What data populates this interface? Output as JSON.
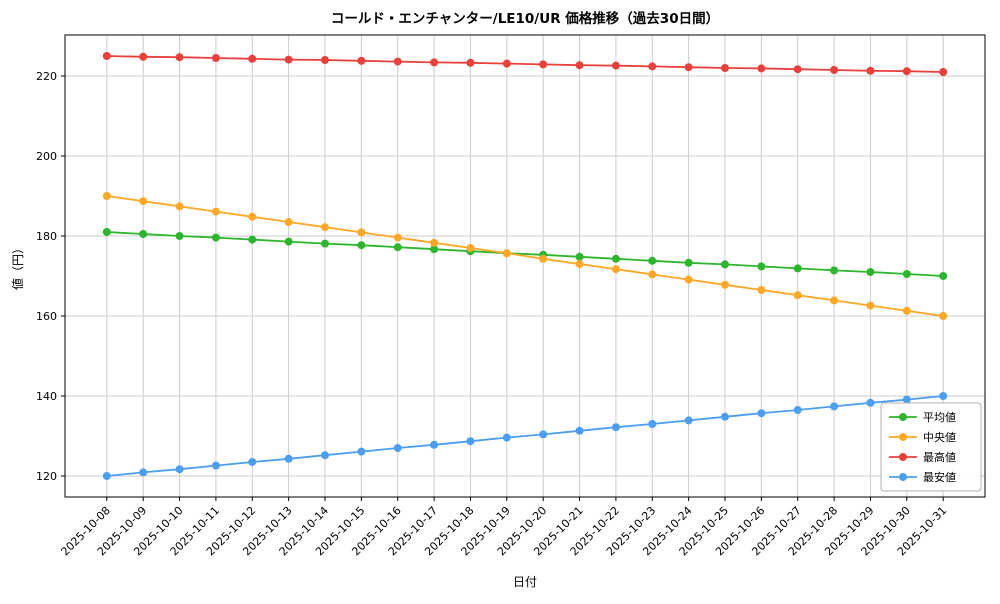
{
  "chart_data": {
    "type": "line",
    "title": "コールド・エンチャンター/LE10/UR 価格推移（過去30日間）",
    "xlabel": "日付",
    "ylabel": "値（円）",
    "grid": true,
    "legend_position": "lower-right",
    "ylim": [
      114.75,
      230.25
    ],
    "yticks": [
      120,
      140,
      160,
      180,
      200,
      220
    ],
    "x": [
      "2025-10-08",
      "2025-10-09",
      "2025-10-10",
      "2025-10-11",
      "2025-10-12",
      "2025-10-13",
      "2025-10-14",
      "2025-10-15",
      "2025-10-16",
      "2025-10-17",
      "2025-10-18",
      "2025-10-19",
      "2025-10-20",
      "2025-10-21",
      "2025-10-22",
      "2025-10-23",
      "2025-10-24",
      "2025-10-25",
      "2025-10-26",
      "2025-10-27",
      "2025-10-28",
      "2025-10-29",
      "2025-10-30",
      "2025-10-31"
    ],
    "series": [
      {
        "name": "平均値",
        "color": "#2db52d",
        "values": [
          181.0,
          180.5,
          180.0,
          179.6,
          179.1,
          178.6,
          178.1,
          177.7,
          177.2,
          176.7,
          176.2,
          175.7,
          175.3,
          174.8,
          174.3,
          173.8,
          173.3,
          172.9,
          172.4,
          171.9,
          171.4,
          171.0,
          170.5,
          170.0
        ]
      },
      {
        "name": "中央値",
        "color": "#ffa726",
        "values": [
          190.0,
          188.7,
          187.4,
          186.1,
          184.8,
          183.5,
          182.2,
          180.9,
          179.6,
          178.3,
          177.0,
          175.7,
          174.3,
          173.0,
          171.7,
          170.4,
          169.1,
          167.8,
          166.5,
          165.2,
          163.9,
          162.6,
          161.3,
          160.0
        ]
      },
      {
        "name": "最高値",
        "color": "#e8413c",
        "values": [
          225.0,
          224.8,
          224.7,
          224.5,
          224.3,
          224.1,
          224.0,
          223.8,
          223.6,
          223.4,
          223.3,
          223.1,
          222.9,
          222.7,
          222.6,
          222.4,
          222.2,
          222.0,
          221.9,
          221.7,
          221.5,
          221.3,
          221.2,
          221.0
        ]
      },
      {
        "name": "最安値",
        "color": "#4b9ef0",
        "values": [
          120.0,
          120.9,
          121.7,
          122.6,
          123.5,
          124.3,
          125.2,
          126.1,
          127.0,
          127.8,
          128.7,
          129.6,
          130.4,
          131.3,
          132.2,
          133.0,
          133.9,
          134.8,
          135.7,
          136.5,
          137.4,
          138.3,
          139.1,
          140.0
        ]
      }
    ]
  }
}
